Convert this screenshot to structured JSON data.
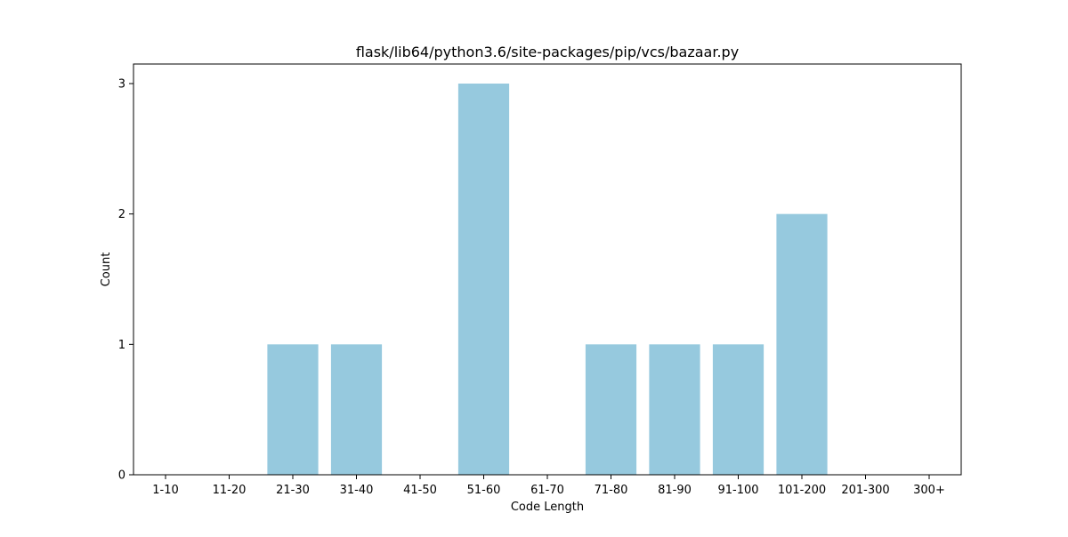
{
  "chart_data": {
    "type": "bar",
    "title": "flask/lib64/python3.6/site-packages/pip/vcs/bazaar.py",
    "xlabel": "Code Length",
    "ylabel": "Count",
    "categories": [
      "1-10",
      "11-20",
      "21-30",
      "31-40",
      "41-50",
      "51-60",
      "61-70",
      "71-80",
      "81-90",
      "91-100",
      "101-200",
      "201-300",
      "300+"
    ],
    "values": [
      0,
      0,
      1,
      1,
      0,
      3,
      0,
      1,
      1,
      1,
      2,
      0,
      0
    ],
    "ylim": [
      0,
      3.15
    ],
    "yticks": [
      0,
      1,
      2,
      3
    ],
    "grid": false,
    "bar_color": "#96c9de"
  }
}
